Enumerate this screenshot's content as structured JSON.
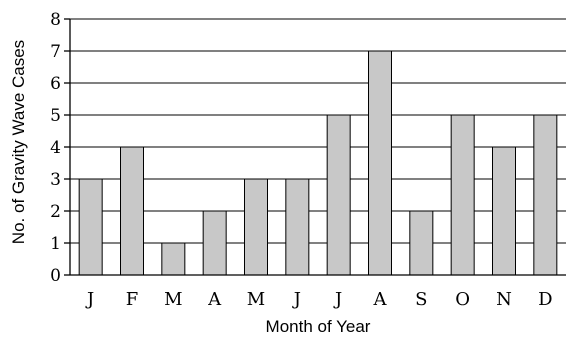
{
  "chart_data": {
    "type": "bar",
    "categories": [
      "J",
      "F",
      "M",
      "A",
      "M",
      "J",
      "J",
      "A",
      "S",
      "O",
      "N",
      "D"
    ],
    "values": [
      3,
      4,
      1,
      2,
      3,
      3,
      5,
      7,
      2,
      5,
      4,
      5
    ],
    "title": "",
    "xlabel": "Month of Year",
    "ylabel": "No. of Gravity Wave Cases",
    "ylim": [
      0,
      8
    ],
    "yticks": [
      "0",
      "1",
      "2",
      "3",
      "4",
      "5",
      "6",
      "7",
      "8"
    ],
    "grid": "horizontal",
    "legend": "none",
    "colors": {
      "bar_fill": "#c8c8c8",
      "bar_edge": "#000000",
      "grid": "#000000",
      "axis": "#000000"
    }
  }
}
